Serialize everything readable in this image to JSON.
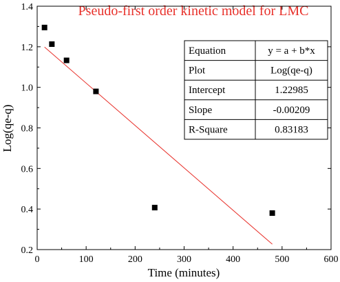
{
  "chart_data": {
    "type": "scatter",
    "title": "Pseudo-first order kinetic model for LMC",
    "xlabel": "Time (minutes)",
    "ylabel": "Log(qe-q)",
    "xlim": [
      0,
      600
    ],
    "ylim": [
      0.2,
      1.4
    ],
    "x_ticks": [
      "0",
      "100",
      "200",
      "300",
      "400",
      "500",
      "600"
    ],
    "y_ticks": [
      "0.2",
      "0.4",
      "0.6",
      "0.8",
      "1.0",
      "1.2",
      "1.4"
    ],
    "grid": false,
    "points": [
      {
        "x": 15,
        "y": 1.295
      },
      {
        "x": 30,
        "y": 1.213
      },
      {
        "x": 60,
        "y": 1.133
      },
      {
        "x": 120,
        "y": 0.98
      },
      {
        "x": 240,
        "y": 0.407
      },
      {
        "x": 480,
        "y": 0.38
      }
    ],
    "fit_line": {
      "x_start": 15,
      "x_end": 480,
      "intercept": 1.22985,
      "slope": -0.00209,
      "color": "#e8302a"
    },
    "marker_color": "#000000",
    "title_color": "#e8302a",
    "stats_table": {
      "rows": [
        {
          "label": "Equation",
          "value": "y = a + b*x"
        },
        {
          "label": "Plot",
          "value": "Log(qe-q)"
        },
        {
          "label": "Intercept",
          "value": "1.22985"
        },
        {
          "label": "Slope",
          "value": "-0.00209"
        },
        {
          "label": "R-Square",
          "value": "0.83183"
        }
      ]
    }
  }
}
